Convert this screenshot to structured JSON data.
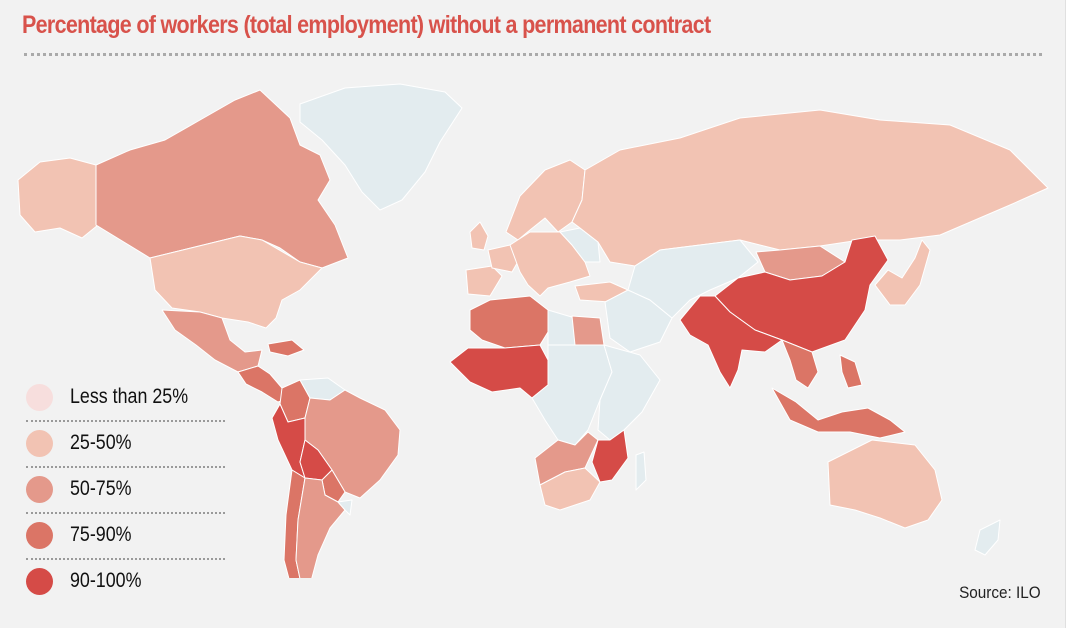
{
  "title": "Percentage of workers (total employment) without a permanent contract",
  "source": "Source: ILO",
  "colors": {
    "background": "#f2f2f2",
    "no_data": "#e3ecef",
    "title": "#d8524b",
    "border": "#ffffff"
  },
  "legend": {
    "items": [
      {
        "label": "Less than 25%",
        "color": "#f7dedd"
      },
      {
        "label": "25-50%",
        "color": "#f2c3b3"
      },
      {
        "label": "50-75%",
        "color": "#e4998b"
      },
      {
        "label": "75-90%",
        "color": "#db7566"
      },
      {
        "label": "90-100%",
        "color": "#d54b47"
      }
    ]
  },
  "regions": [
    {
      "name": "greenland",
      "category": "no-data"
    },
    {
      "name": "canada",
      "category": "50-75%"
    },
    {
      "name": "alaska",
      "category": "25-50%"
    },
    {
      "name": "usa",
      "category": "25-50%"
    },
    {
      "name": "mexico",
      "category": "50-75%"
    },
    {
      "name": "central-america",
      "category": "75-90%"
    },
    {
      "name": "caribbean",
      "category": "75-90%"
    },
    {
      "name": "colombia",
      "category": "75-90%"
    },
    {
      "name": "venezuela",
      "category": "no-data"
    },
    {
      "name": "peru",
      "category": "90-100%"
    },
    {
      "name": "bolivia",
      "category": "90-100%"
    },
    {
      "name": "brazil",
      "category": "50-75%"
    },
    {
      "name": "paraguay",
      "category": "75-90%"
    },
    {
      "name": "uruguay",
      "category": "no-data"
    },
    {
      "name": "chile",
      "category": "75-90%"
    },
    {
      "name": "argentina",
      "category": "50-75%"
    },
    {
      "name": "iberia",
      "category": "25-50%"
    },
    {
      "name": "france",
      "category": "25-50%"
    },
    {
      "name": "british-isles",
      "category": "25-50%"
    },
    {
      "name": "scandinavia",
      "category": "25-50%"
    },
    {
      "name": "central-europe",
      "category": "25-50%"
    },
    {
      "name": "eastern-europe",
      "category": "no-data"
    },
    {
      "name": "russia",
      "category": "25-50%"
    },
    {
      "name": "turkey",
      "category": "25-50%"
    },
    {
      "name": "middle-east",
      "category": "no-data"
    },
    {
      "name": "central-asia",
      "category": "no-data"
    },
    {
      "name": "mongolia",
      "category": "50-75%"
    },
    {
      "name": "china",
      "category": "90-100%"
    },
    {
      "name": "south-asia",
      "category": "90-100%"
    },
    {
      "name": "southeast-asia",
      "category": "75-90%"
    },
    {
      "name": "japan-korea",
      "category": "25-50%"
    },
    {
      "name": "indonesia",
      "category": "75-90%"
    },
    {
      "name": "philippines",
      "category": "75-90%"
    },
    {
      "name": "australia",
      "category": "25-50%"
    },
    {
      "name": "new-zealand",
      "category": "no-data"
    },
    {
      "name": "north-africa",
      "category": "75-90%"
    },
    {
      "name": "libya",
      "category": "no-data"
    },
    {
      "name": "egypt",
      "category": "50-75%"
    },
    {
      "name": "west-africa",
      "category": "90-100%"
    },
    {
      "name": "central-africa",
      "category": "no-data"
    },
    {
      "name": "east-africa",
      "category": "no-data"
    },
    {
      "name": "southern-africa",
      "category": "50-75%"
    },
    {
      "name": "south-africa",
      "category": "25-50%"
    },
    {
      "name": "mozambique",
      "category": "90-100%"
    },
    {
      "name": "madagascar",
      "category": "no-data"
    }
  ]
}
